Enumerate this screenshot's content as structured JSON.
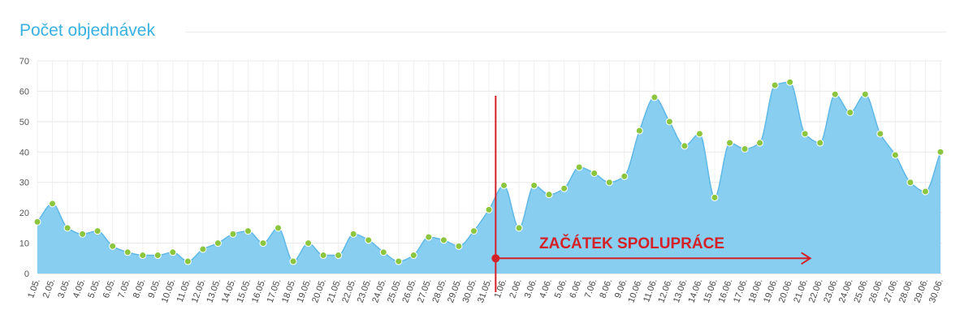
{
  "chart_data": {
    "type": "area",
    "title": "Počet objednávek",
    "xlabel": "",
    "ylabel": "",
    "ylim": [
      0,
      70
    ],
    "yticks": [
      0,
      10,
      20,
      30,
      40,
      50,
      60,
      70
    ],
    "grid": true,
    "legend": "none",
    "colors": {
      "fill": "#88cef0",
      "line": "#5fb8e6",
      "marker": "#8cc63f",
      "annotation": "#d42027",
      "title": "#3ab0e2"
    },
    "x": [
      "1.05.",
      "2.05.",
      "3.05.",
      "4.05.",
      "5.05.",
      "6.05.",
      "7.05.",
      "8.05.",
      "9.05.",
      "10.05.",
      "11.05.",
      "12.05.",
      "13.05.",
      "14.05.",
      "15.05.",
      "16.05.",
      "17.05.",
      "18.05.",
      "19.05.",
      "20.05.",
      "21.05.",
      "22.05.",
      "23.05.",
      "24.05.",
      "25.05.",
      "26.05.",
      "27.05.",
      "28.05.",
      "29.05.",
      "30.05.",
      "31.05.",
      "1.06.",
      "2.06.",
      "3.06.",
      "4.06.",
      "5.06.",
      "6.06.",
      "7.06.",
      "8.06.",
      "9.06.",
      "10.06.",
      "11.06.",
      "12.06.",
      "13.06.",
      "14.06.",
      "15.06.",
      "16.06.",
      "17.06.",
      "18.06.",
      "19.06.",
      "20.06.",
      "21.06.",
      "22.06.",
      "23.06.",
      "24.06.",
      "25.06.",
      "26.06.",
      "27.06.",
      "28.06.",
      "29.06.",
      "30.06."
    ],
    "series": [
      {
        "values": [
          17,
          23,
          15,
          13,
          14,
          9,
          7,
          6,
          6,
          7,
          4,
          8,
          10,
          13,
          14,
          10,
          15,
          4,
          10,
          6,
          6,
          13,
          11,
          7,
          4,
          6,
          12,
          11,
          9,
          14,
          21,
          29,
          15,
          29,
          26,
          28,
          35,
          33,
          30,
          32,
          47,
          58,
          50,
          42,
          46,
          25,
          43,
          41,
          43,
          62,
          63,
          46,
          43,
          59,
          53,
          59,
          46,
          39,
          30,
          27,
          40
        ]
      }
    ],
    "annotations": [
      {
        "text": "ZAČÁTEK SPOLUPRÁCE",
        "x_from": "31.05.",
        "x_to": "21.06.",
        "y": 5,
        "marker_line_x": "31.05."
      }
    ]
  }
}
